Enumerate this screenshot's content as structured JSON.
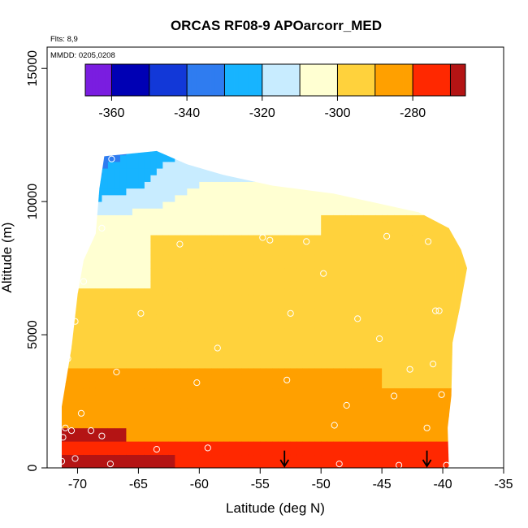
{
  "chart_data": {
    "type": "heatmap",
    "title": "ORCAS RF08-9 APOarcorr_MED",
    "annotations": [
      "Flts: 8,9",
      "MMDD: 0205,0208"
    ],
    "xlabel": "Latitude (deg N)",
    "ylabel": "Altitude (m)",
    "xlim": [
      -72.5,
      -35
    ],
    "ylim": [
      0,
      15800
    ],
    "x_ticks": [
      -70,
      -65,
      -60,
      -55,
      -50,
      -45,
      -40,
      -35
    ],
    "y_ticks": [
      0,
      5000,
      10000,
      15000
    ],
    "grid": false,
    "colorbar": {
      "placement": "top",
      "range": [
        -367,
        -266
      ],
      "ticks": [
        -360,
        -340,
        -320,
        -300,
        -280
      ],
      "bin_edges": [
        -367,
        -360,
        -350,
        -340,
        -330,
        -320,
        -310,
        -300,
        -290,
        -280,
        -270,
        -266
      ],
      "colors": [
        "#7a1de0",
        "#0000b4",
        "#1238d8",
        "#2f7cf0",
        "#17b4ff",
        "#c8ecff",
        "#ffffd2",
        "#ffd23c",
        "#ffa000",
        "#ff2800",
        "#b41414"
      ]
    },
    "domain_outline": [
      [
        -71.3,
        0
      ],
      [
        -71.3,
        2300
      ],
      [
        -70.5,
        4500
      ],
      [
        -70,
        6500
      ],
      [
        -69.5,
        7800
      ],
      [
        -68.5,
        8800
      ],
      [
        -68.2,
        10500
      ],
      [
        -67.8,
        11700
      ],
      [
        -63.5,
        11900
      ],
      [
        -61,
        11400
      ],
      [
        -58,
        11000
      ],
      [
        -54,
        10600
      ],
      [
        -49,
        10300
      ],
      [
        -45,
        9900
      ],
      [
        -42,
        9600
      ],
      [
        -39.5,
        9000
      ],
      [
        -38.5,
        8200
      ],
      [
        -38,
        7500
      ],
      [
        -38.6,
        6000
      ],
      [
        -39.2,
        4700
      ],
      [
        -39.3,
        2700
      ],
      [
        -39.6,
        1500
      ],
      [
        -39.5,
        0
      ]
    ],
    "field_description": "Values near -266 to -280 below about 2000 m, about -290 to -300 through the mid troposphere, rising to about -310 to -325 above 9000 m south of -60 deg N.",
    "sample_points": [
      {
        "x": -67.2,
        "y": 11600
      },
      {
        "x": -68,
        "y": 9000
      },
      {
        "x": -69.5,
        "y": 7000
      },
      {
        "x": -70.2,
        "y": 5500
      },
      {
        "x": -70.8,
        "y": 4100
      },
      {
        "x": -66.8,
        "y": 3600
      },
      {
        "x": -64.8,
        "y": 5800
      },
      {
        "x": -61.6,
        "y": 8400
      },
      {
        "x": -60.2,
        "y": 3200
      },
      {
        "x": -58.5,
        "y": 4500
      },
      {
        "x": -54.8,
        "y": 8650
      },
      {
        "x": -54.2,
        "y": 8550
      },
      {
        "x": -52.5,
        "y": 5800
      },
      {
        "x": -52.8,
        "y": 3300
      },
      {
        "x": -51.2,
        "y": 8500
      },
      {
        "x": -49.8,
        "y": 7300
      },
      {
        "x": -48.9,
        "y": 1600
      },
      {
        "x": -47.9,
        "y": 2350
      },
      {
        "x": -47,
        "y": 5600
      },
      {
        "x": -45.2,
        "y": 4850
      },
      {
        "x": -44.6,
        "y": 8700
      },
      {
        "x": -44,
        "y": 2700
      },
      {
        "x": -42.7,
        "y": 3700
      },
      {
        "x": -41.2,
        "y": 8500
      },
      {
        "x": -40.6,
        "y": 5900
      },
      {
        "x": -40.3,
        "y": 5900
      },
      {
        "x": -40.8,
        "y": 3900
      },
      {
        "x": -40.1,
        "y": 2750
      },
      {
        "x": -41.3,
        "y": 1500
      },
      {
        "x": -69.7,
        "y": 2050
      },
      {
        "x": -71,
        "y": 1500
      },
      {
        "x": -71.2,
        "y": 1150
      },
      {
        "x": -70.5,
        "y": 1400
      },
      {
        "x": -68.9,
        "y": 1400
      },
      {
        "x": -68,
        "y": 1200
      },
      {
        "x": -63.5,
        "y": 700
      },
      {
        "x": -59.3,
        "y": 750
      },
      {
        "x": -70.2,
        "y": 350
      },
      {
        "x": -67.3,
        "y": 150
      },
      {
        "x": -71.3,
        "y": 250
      },
      {
        "x": -48.5,
        "y": 150
      },
      {
        "x": -43.6,
        "y": 100
      },
      {
        "x": -39.7,
        "y": 100
      }
    ],
    "arrows": [
      {
        "x": -53,
        "y_from": 650,
        "y_to": 0
      },
      {
        "x": -41.3,
        "y_from": 650,
        "y_to": 0
      }
    ]
  }
}
